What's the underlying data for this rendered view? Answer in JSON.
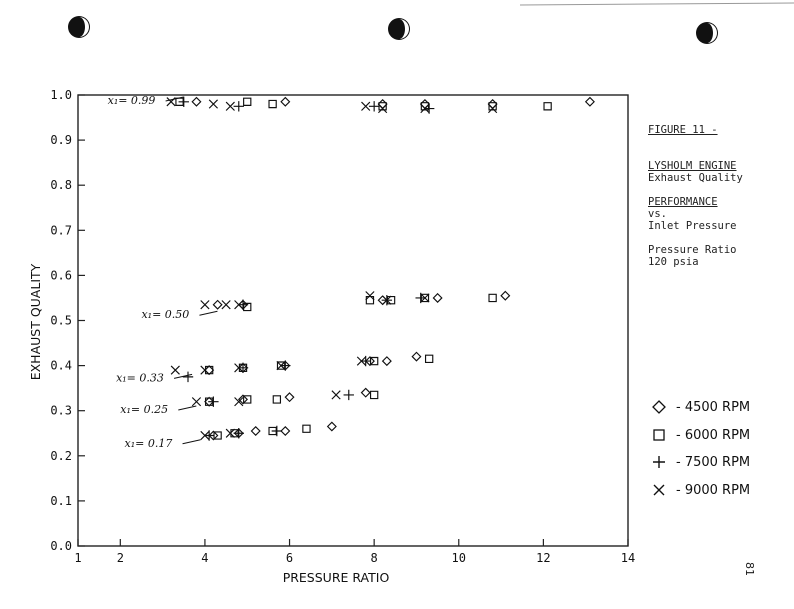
{
  "sidebar": {
    "figure_title_lines": [
      "FIGURE 11 -",
      "LYSHOLM ENGINE",
      "PERFORMANCE"
    ],
    "subtitle_lines": [
      "Exhaust Quality",
      "vs.",
      "Pressure Ratio"
    ],
    "condition_lines": [
      "Inlet Pressure",
      "120 psia"
    ]
  },
  "page_number": "81",
  "legend": [
    {
      "marker": "diamond",
      "label": "- 4500 RPM"
    },
    {
      "marker": "square",
      "label": "- 6000 RPM"
    },
    {
      "marker": "plus",
      "label": "- 7500 RPM"
    },
    {
      "marker": "x",
      "label": "- 9000 RPM"
    }
  ],
  "chart_data": {
    "type": "scatter",
    "title": "",
    "xlabel": "PRESSURE RATIO",
    "ylabel": "EXHAUST QUALITY",
    "xlim": [
      1,
      14
    ],
    "ylim": [
      0.0,
      1.0
    ],
    "x_ticks": [
      1,
      2,
      4,
      6,
      8,
      10,
      12,
      14
    ],
    "y_ticks": [
      0.0,
      0.1,
      0.2,
      0.3,
      0.4,
      0.5,
      0.6,
      0.7,
      0.8,
      0.9,
      1.0
    ],
    "grid": false,
    "legend_position": "right",
    "annotations": [
      {
        "text": "x₁= 0.99",
        "x": 1.7,
        "y": 0.98
      },
      {
        "text": "x₁= 0.50",
        "x": 2.5,
        "y": 0.505
      },
      {
        "text": "x₁= 0.33",
        "x": 1.9,
        "y": 0.365
      },
      {
        "text": "x₁= 0.25",
        "x": 2.0,
        "y": 0.295
      },
      {
        "text": "x₁= 0.17",
        "x": 2.1,
        "y": 0.22
      }
    ],
    "series": [
      {
        "name": "4500 RPM",
        "marker": "diamond",
        "points": [
          [
            3.8,
            0.985
          ],
          [
            5.9,
            0.985
          ],
          [
            8.2,
            0.98
          ],
          [
            9.2,
            0.98
          ],
          [
            10.8,
            0.98
          ],
          [
            13.1,
            0.985
          ],
          [
            4.3,
            0.535
          ],
          [
            4.9,
            0.535
          ],
          [
            8.2,
            0.545
          ],
          [
            9.5,
            0.55
          ],
          [
            11.1,
            0.555
          ],
          [
            4.1,
            0.39
          ],
          [
            4.9,
            0.395
          ],
          [
            5.9,
            0.4
          ],
          [
            7.9,
            0.41
          ],
          [
            8.3,
            0.41
          ],
          [
            9.0,
            0.42
          ],
          [
            4.1,
            0.32
          ],
          [
            4.9,
            0.325
          ],
          [
            6.0,
            0.33
          ],
          [
            7.8,
            0.34
          ],
          [
            4.2,
            0.245
          ],
          [
            4.8,
            0.25
          ],
          [
            5.2,
            0.255
          ],
          [
            5.9,
            0.255
          ],
          [
            7.0,
            0.265
          ]
        ]
      },
      {
        "name": "6000 RPM",
        "marker": "square",
        "points": [
          [
            3.4,
            0.985
          ],
          [
            5.0,
            0.985
          ],
          [
            5.6,
            0.98
          ],
          [
            8.2,
            0.975
          ],
          [
            9.2,
            0.975
          ],
          [
            10.8,
            0.975
          ],
          [
            12.1,
            0.975
          ],
          [
            5.0,
            0.53
          ],
          [
            7.9,
            0.545
          ],
          [
            8.4,
            0.545
          ],
          [
            9.2,
            0.55
          ],
          [
            10.8,
            0.55
          ],
          [
            4.1,
            0.39
          ],
          [
            4.9,
            0.395
          ],
          [
            5.8,
            0.4
          ],
          [
            8.0,
            0.41
          ],
          [
            9.3,
            0.415
          ],
          [
            4.1,
            0.32
          ],
          [
            5.0,
            0.325
          ],
          [
            5.7,
            0.325
          ],
          [
            8.0,
            0.335
          ],
          [
            4.3,
            0.245
          ],
          [
            4.7,
            0.25
          ],
          [
            5.6,
            0.255
          ],
          [
            6.4,
            0.26
          ]
        ]
      },
      {
        "name": "7500 RPM",
        "marker": "plus",
        "points": [
          [
            3.5,
            0.985
          ],
          [
            4.8,
            0.975
          ],
          [
            8.0,
            0.975
          ],
          [
            9.3,
            0.97
          ],
          [
            4.9,
            0.535
          ],
          [
            8.3,
            0.545
          ],
          [
            9.1,
            0.55
          ],
          [
            3.6,
            0.375
          ],
          [
            4.9,
            0.395
          ],
          [
            5.9,
            0.4
          ],
          [
            7.8,
            0.41
          ],
          [
            4.2,
            0.32
          ],
          [
            7.4,
            0.335
          ],
          [
            4.1,
            0.245
          ],
          [
            4.8,
            0.25
          ],
          [
            5.7,
            0.255
          ]
        ]
      },
      {
        "name": "9000 RPM",
        "marker": "x",
        "points": [
          [
            3.2,
            0.985
          ],
          [
            4.2,
            0.98
          ],
          [
            4.6,
            0.975
          ],
          [
            7.8,
            0.975
          ],
          [
            8.2,
            0.97
          ],
          [
            9.2,
            0.97
          ],
          [
            10.8,
            0.97
          ],
          [
            4.0,
            0.535
          ],
          [
            4.5,
            0.535
          ],
          [
            4.8,
            0.535
          ],
          [
            7.9,
            0.555
          ],
          [
            8.3,
            0.545
          ],
          [
            9.2,
            0.55
          ],
          [
            3.3,
            0.39
          ],
          [
            4.0,
            0.39
          ],
          [
            4.8,
            0.395
          ],
          [
            5.8,
            0.4
          ],
          [
            7.7,
            0.41
          ],
          [
            3.8,
            0.32
          ],
          [
            4.8,
            0.32
          ],
          [
            7.1,
            0.335
          ],
          [
            4.0,
            0.245
          ],
          [
            4.6,
            0.25
          ]
        ]
      }
    ]
  }
}
